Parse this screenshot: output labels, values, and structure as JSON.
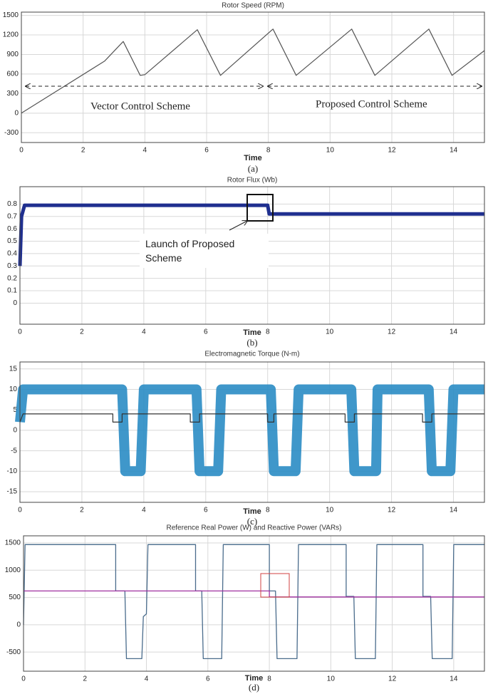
{
  "chart_data": [
    {
      "type": "line",
      "title": "Rotor Speed (RPM)",
      "xlabel": "Time",
      "caption": "(a)",
      "grid": true,
      "xlim": [
        0,
        15
      ],
      "xticks": [
        0,
        2,
        4,
        6,
        8,
        10,
        12,
        14
      ],
      "ylim": [
        -450,
        1550
      ],
      "yticks": [
        -300,
        0,
        300,
        600,
        900,
        1200,
        1500
      ],
      "annotations": [
        "Vector Control Scheme",
        "Proposed Control Scheme"
      ],
      "series": [
        {
          "color": "#555555",
          "x": [
            0,
            2.7,
            3.3,
            3.85,
            4.0,
            5.7,
            6.45,
            8.15,
            8.9,
            10.7,
            11.45,
            13.2,
            13.95,
            15
          ],
          "values": [
            0,
            800,
            1100,
            580,
            590,
            1280,
            580,
            1290,
            580,
            1290,
            580,
            1290,
            580,
            960
          ]
        }
      ]
    },
    {
      "type": "line",
      "title": "Rotor Flux (Wb)",
      "xlabel": "Time",
      "caption": "(b)",
      "grid": true,
      "xlim": [
        0,
        15
      ],
      "xticks": [
        0,
        2,
        4,
        6,
        8,
        10,
        12,
        14
      ],
      "ylim": [
        -0.17,
        0.94
      ],
      "yticks": [
        0,
        0.1,
        0.2,
        0.3,
        0.4,
        0.5,
        0.6,
        0.7,
        0.8
      ],
      "annotations": [
        "Launch of Proposed Scheme"
      ],
      "series": [
        {
          "color": "#1f2f8f",
          "x": [
            0,
            0.05,
            0.15,
            8.0,
            8.05,
            15
          ],
          "values": [
            0.3,
            0.7,
            0.79,
            0.79,
            0.72,
            0.72
          ]
        }
      ]
    },
    {
      "type": "line",
      "title": "Electromagnetic Torque (N-m)",
      "xlabel": "Time",
      "caption": "(c)",
      "grid": true,
      "xlim": [
        0,
        15
      ],
      "xticks": [
        0,
        2,
        4,
        6,
        8,
        10,
        12,
        14
      ],
      "ylim": [
        -17.6,
        16.7
      ],
      "yticks": [
        -15,
        -10,
        -5,
        0,
        5,
        10,
        15
      ],
      "series": [
        {
          "color": "#2a8cc4",
          "x": [
            0,
            0.1,
            3.3,
            3.4,
            3.9,
            4.0,
            5.7,
            5.8,
            6.4,
            6.5,
            8.1,
            8.2,
            8.9,
            9.0,
            10.7,
            10.8,
            11.5,
            11.55,
            13.2,
            13.3,
            13.9,
            14.0,
            15
          ],
          "values": [
            2,
            10,
            10,
            -10,
            -10,
            10,
            10,
            -10,
            -10,
            10,
            10,
            -10,
            -10,
            10,
            10,
            -10,
            -10,
            10,
            10,
            -10,
            -10,
            10,
            10
          ]
        },
        {
          "color": "#333333",
          "x": [
            0,
            0.1,
            3.0,
            3.0,
            3.3,
            3.3,
            5.5,
            5.5,
            5.8,
            5.8,
            8.0,
            8.0,
            8.2,
            8.2,
            10.5,
            10.5,
            10.8,
            10.8,
            13.0,
            13.0,
            13.3,
            13.3,
            15
          ],
          "values": [
            2,
            4,
            4,
            2,
            2,
            4,
            4,
            2,
            2,
            4,
            4,
            2,
            2,
            4,
            4,
            2,
            2,
            4,
            4,
            2,
            2,
            4,
            4
          ]
        }
      ]
    },
    {
      "type": "line",
      "title": "Reference Real Power (W) and Reactive Power (VARs)",
      "xlabel": "Time",
      "caption": "(d)",
      "grid": true,
      "xlim": [
        0,
        15
      ],
      "xticks": [
        0,
        2,
        4,
        6,
        8,
        10,
        12,
        14
      ],
      "ylim": [
        -850,
        1630
      ],
      "yticks": [
        -500,
        0,
        500,
        1000,
        1500
      ],
      "series": [
        {
          "color": "#4a6c8c",
          "x": [
            0,
            0.05,
            3.0,
            3.0,
            3.3,
            3.35,
            3.85,
            3.9,
            4.0,
            4.05,
            5.6,
            5.6,
            5.8,
            5.85,
            6.45,
            6.5,
            8.0,
            8.0,
            8.2,
            8.25,
            8.9,
            8.95,
            10.5,
            10.5,
            10.75,
            10.8,
            11.45,
            11.5,
            13.0,
            13.0,
            13.25,
            13.3,
            13.95,
            14.0,
            15
          ],
          "values": [
            0,
            1470,
            1470,
            620,
            620,
            -620,
            -620,
            150,
            200,
            1470,
            1470,
            620,
            620,
            -620,
            -620,
            1470,
            1470,
            620,
            620,
            -620,
            -620,
            1470,
            1470,
            520,
            520,
            -620,
            -620,
            1470,
            1470,
            520,
            520,
            -620,
            -620,
            1470,
            1470
          ]
        },
        {
          "color": "#a030a0",
          "x": [
            0,
            8.0,
            8.0,
            15
          ],
          "values": [
            620,
            620,
            510,
            510
          ]
        }
      ]
    }
  ]
}
